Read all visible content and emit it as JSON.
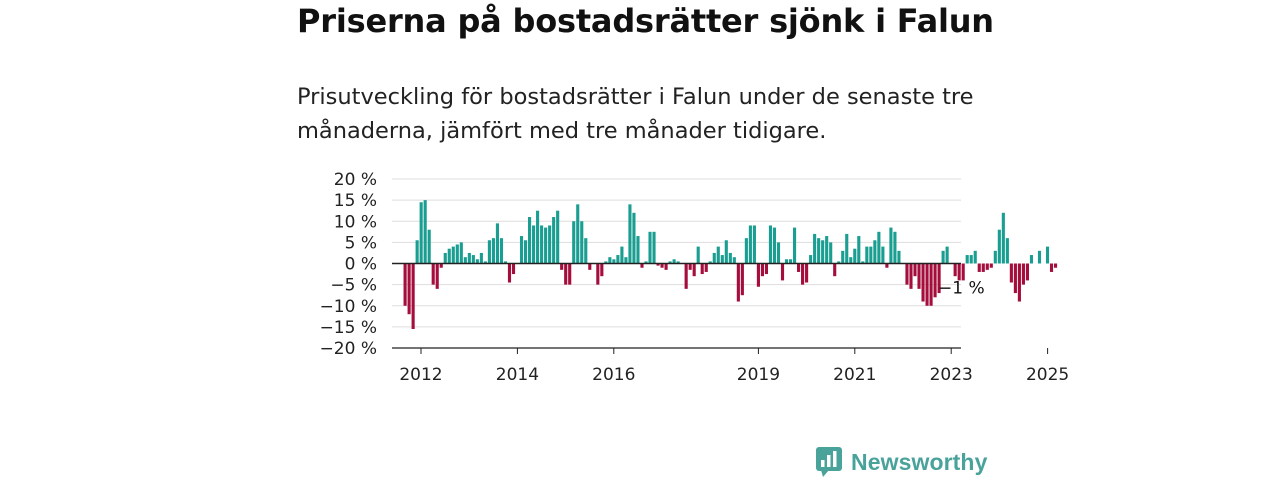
{
  "header": {
    "title": "Priserna på bostadsrätter sjönk i Falun",
    "subtitle": "Prisutveckling för bostadsrätter i Falun under de senaste tre månaderna, jämfört med tre månader tidigare."
  },
  "branding": {
    "name": "Newsworthy",
    "icon": "newsworthy-logo-icon",
    "color": "#4aa39b"
  },
  "colors": {
    "positive": "#1b9e92",
    "negative": "#a50d3d",
    "grid": "#dddddd",
    "axis": "#222222"
  },
  "chart_data": {
    "type": "bar",
    "title": "Priserna på bostadsrätter sjönk i Falun",
    "ylabel": "",
    "xlabel": "",
    "ylim": [
      -20,
      20
    ],
    "yticks": [
      20,
      15,
      10,
      5,
      0,
      -5,
      -10,
      -15,
      -20
    ],
    "ytick_labels": [
      "20 %",
      "15 %",
      "10 %",
      "5 %",
      "0 %",
      "−5 %",
      "−10 %",
      "−15 %",
      "−20 %"
    ],
    "x_start": 2011.67,
    "x_step": 0.0833,
    "xticks": [
      2012,
      2014,
      2016,
      2019,
      2021,
      2023,
      2025
    ],
    "end_label": "−1 %",
    "values": [
      -10,
      -12,
      -15.5,
      5.5,
      14.5,
      15,
      8,
      -5,
      -6,
      -1,
      2.5,
      3.5,
      4,
      4.5,
      5,
      1.5,
      2.5,
      2,
      1,
      2.5,
      0.5,
      5.5,
      6,
      9.5,
      6,
      0.5,
      -4.5,
      -2.5,
      0,
      6.5,
      5.5,
      11,
      9,
      12.5,
      9,
      8.5,
      9,
      11,
      12.5,
      -1.5,
      -5,
      -5,
      10,
      14,
      10,
      6,
      -1.5,
      0,
      -5,
      -3,
      0.5,
      1.5,
      1,
      2,
      4,
      1.5,
      14,
      12,
      6.5,
      -1,
      0.5,
      7.5,
      7.5,
      -0.5,
      -1,
      -1.5,
      0.5,
      1,
      0.5,
      0,
      -6,
      -1.5,
      -3,
      4,
      -2.5,
      -2,
      0.5,
      2.5,
      4,
      2,
      5.5,
      2.5,
      1.5,
      -9,
      -7.5,
      6,
      9,
      9,
      -5.5,
      -3,
      -2.5,
      9,
      8.5,
      5,
      -4,
      1,
      1,
      8.5,
      -2,
      -5,
      -4.5,
      2,
      7,
      6,
      5.5,
      6.5,
      5,
      -3,
      0.5,
      3,
      7,
      1.5,
      3.5,
      6.5,
      0.5,
      4,
      4,
      5.5,
      7.5,
      4,
      -1,
      8.5,
      7.5,
      3,
      0,
      -5,
      -6,
      -3,
      -6,
      -9,
      -10,
      -10,
      -8,
      -7,
      3,
      4,
      0,
      -3,
      -4,
      -4,
      2,
      2,
      3,
      -2,
      -2,
      -1.5,
      -1,
      3,
      8,
      12,
      6,
      -4.5,
      -7,
      -9,
      -5,
      -4,
      2,
      0,
      3,
      0,
      4,
      -2,
      -1
    ]
  }
}
